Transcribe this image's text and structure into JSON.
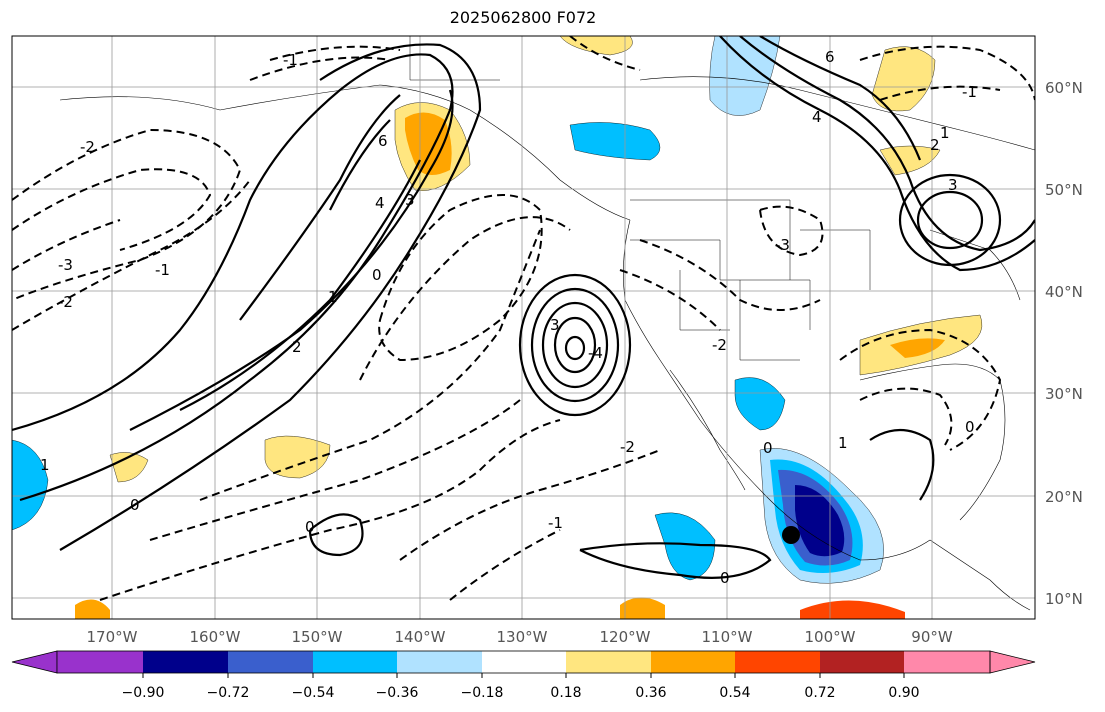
{
  "title": "2025062800 F072",
  "map": {
    "lon_ticks": [
      "170°W",
      "160°W",
      "150°W",
      "140°W",
      "130°W",
      "120°W",
      "110°W",
      "100°W",
      "90°W"
    ],
    "lat_ticks": [
      "60°N",
      "50°N",
      "40°N",
      "30°N",
      "20°N",
      "10°N"
    ],
    "marker": "storm-center-dot"
  },
  "colorbar": {
    "levels": [
      "−0.90",
      "−0.72",
      "−0.54",
      "−0.36",
      "−0.18",
      "0.18",
      "0.36",
      "0.54",
      "0.72",
      "0.90"
    ],
    "colors": [
      "#9932CC",
      "#00008B",
      "#3A5FCD",
      "#00BFFF",
      "#B0E2FF",
      "#FFFFFF",
      "#FFE680",
      "#FFA500",
      "#FF4500",
      "#B22222",
      "#FF88AA"
    ]
  },
  "contour_labels": [
    "6",
    "4",
    "3",
    "2",
    "1",
    "0",
    "-1",
    "-2",
    "-3",
    "-4"
  ],
  "chart_data": {
    "type": "heatmap",
    "title": "2025062800 F072",
    "xlabel": "",
    "ylabel": "",
    "xlim": [
      -180,
      -80
    ],
    "ylim": [
      8,
      65
    ],
    "color_levels": [
      -0.9,
      -0.72,
      -0.54,
      -0.36,
      -0.18,
      0.18,
      0.36,
      0.54,
      0.72,
      0.9
    ]
  }
}
